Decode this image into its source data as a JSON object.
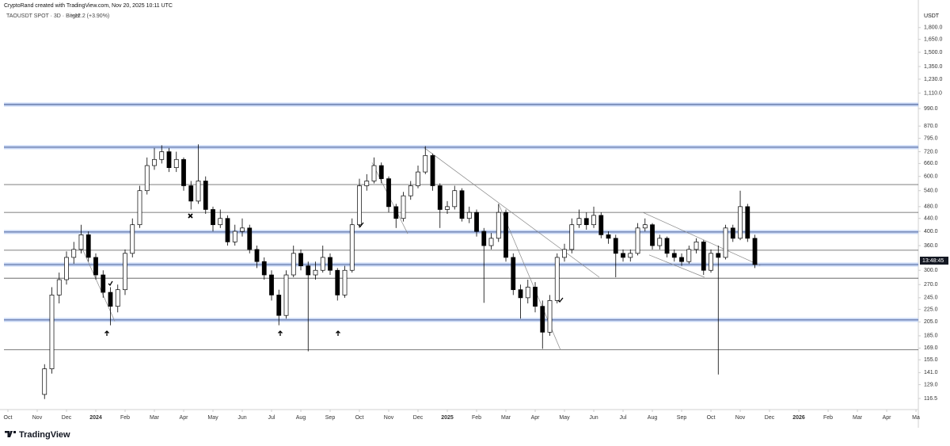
{
  "chart_data": {
    "type": "candlestick",
    "credit": "CryptoRand created with TradingView.com, Nov 20, 2025 10:11 UTC",
    "title": "TAOUSDT SPOT · 3D · Bitget",
    "change": "+12.2 (+3.90%)",
    "unit": "USDT",
    "countdown": "13:48:45",
    "brand": "TradingView",
    "log_scale": true,
    "grid": false,
    "up_color": "#ffffff",
    "down_color": "#000000",
    "border_color": "#000000",
    "xlim": [
      -0.27,
      31.08
    ],
    "ylim": [
      108.6,
      2033
    ],
    "xticks": [
      {
        "value": 0,
        "label": "Oct"
      },
      {
        "value": 1,
        "label": "Nov"
      },
      {
        "value": 2,
        "label": "Dec"
      },
      {
        "value": 3,
        "label": "2024"
      },
      {
        "value": 4,
        "label": "Feb"
      },
      {
        "value": 5,
        "label": "Mar"
      },
      {
        "value": 6,
        "label": "Apr"
      },
      {
        "value": 7,
        "label": "May"
      },
      {
        "value": 8,
        "label": "Jun"
      },
      {
        "value": 9,
        "label": "Jul"
      },
      {
        "value": 10,
        "label": "Aug"
      },
      {
        "value": 11,
        "label": "Sep"
      },
      {
        "value": 12,
        "label": "Oct"
      },
      {
        "value": 13,
        "label": "Nov"
      },
      {
        "value": 14,
        "label": "Dec"
      },
      {
        "value": 15,
        "label": "2025"
      },
      {
        "value": 16,
        "label": "Feb"
      },
      {
        "value": 17,
        "label": "Mar"
      },
      {
        "value": 18,
        "label": "Apr"
      },
      {
        "value": 19,
        "label": "May"
      },
      {
        "value": 20,
        "label": "Jun"
      },
      {
        "value": 21,
        "label": "Jul"
      },
      {
        "value": 22,
        "label": "Aug"
      },
      {
        "value": 23,
        "label": "Sep"
      },
      {
        "value": 24,
        "label": "Oct"
      },
      {
        "value": 25,
        "label": "Nov"
      },
      {
        "value": 26,
        "label": "Dec"
      },
      {
        "value": 27,
        "label": "2026"
      },
      {
        "value": 28,
        "label": "Feb"
      },
      {
        "value": 29,
        "label": "Mar"
      },
      {
        "value": 30,
        "label": "Apr"
      },
      {
        "value": 31,
        "label": "Ma"
      }
    ],
    "yticks": [
      {
        "value": 116.5,
        "label": "116.5"
      },
      {
        "value": 129,
        "label": "129.0"
      },
      {
        "value": 141,
        "label": "141.0"
      },
      {
        "value": 155,
        "label": "155.0"
      },
      {
        "value": 169,
        "label": "169.0"
      },
      {
        "value": 185,
        "label": "185.0"
      },
      {
        "value": 205,
        "label": "205.0"
      },
      {
        "value": 225,
        "label": "225.0"
      },
      {
        "value": 245,
        "label": "245.0"
      },
      {
        "value": 270,
        "label": "270.0"
      },
      {
        "value": 300,
        "label": "300.0"
      },
      {
        "value": 360,
        "label": "360.0"
      },
      {
        "value": 400,
        "label": "400.0"
      },
      {
        "value": 440,
        "label": "440.0"
      },
      {
        "value": 480,
        "label": "480.0"
      },
      {
        "value": 540,
        "label": "540.0"
      },
      {
        "value": 600,
        "label": "600.0"
      },
      {
        "value": 660,
        "label": "660.0"
      },
      {
        "value": 720,
        "label": "720.0"
      },
      {
        "value": 795,
        "label": "795.0"
      },
      {
        "value": 870,
        "label": "870.0"
      },
      {
        "value": 990,
        "label": "990.0"
      },
      {
        "value": 1110,
        "label": "1,110.0"
      },
      {
        "value": 1230,
        "label": "1,230.0"
      },
      {
        "value": 1350,
        "label": "1,350.0"
      },
      {
        "value": 1500,
        "label": "1,500.0"
      },
      {
        "value": 1650,
        "label": "1,650.0"
      },
      {
        "value": 1800,
        "label": "1,800.0"
      }
    ],
    "x": [
      1.25,
      1.5,
      1.75,
      2,
      2.25,
      2.5,
      2.75,
      3,
      3.25,
      3.5,
      3.75,
      4,
      4.25,
      4.5,
      4.75,
      5,
      5.25,
      5.5,
      5.75,
      6,
      6.25,
      6.5,
      6.75,
      7,
      7.25,
      7.5,
      7.75,
      8,
      8.25,
      8.5,
      8.75,
      9,
      9.25,
      9.5,
      9.75,
      10,
      10.25,
      10.5,
      10.75,
      11,
      11.25,
      11.5,
      11.75,
      12,
      12.25,
      12.5,
      12.75,
      13,
      13.25,
      13.5,
      13.75,
      14,
      14.25,
      14.5,
      14.75,
      15,
      15.25,
      15.5,
      15.75,
      16,
      16.25,
      16.5,
      16.75,
      17,
      17.25,
      17.5,
      17.75,
      18,
      18.25,
      18.5,
      18.75,
      19,
      19.25,
      19.5,
      19.75,
      20,
      20.25,
      20.5,
      20.75,
      21,
      21.25,
      21.5,
      21.75,
      22,
      22.25,
      22.5,
      22.75,
      23,
      23.25,
      23.5,
      23.75,
      24,
      24.25,
      24.5,
      24.75,
      25,
      25.25,
      25.5
    ],
    "open": [
      120,
      145,
      250,
      280,
      330,
      350,
      390,
      330,
      290,
      255,
      230,
      260,
      340,
      420,
      540,
      650,
      680,
      720,
      640,
      680,
      560,
      500,
      580,
      470,
      420,
      440,
      370,
      400,
      410,
      350,
      320,
      290,
      250,
      215,
      290,
      340,
      310,
      290,
      300,
      330,
      300,
      250,
      300,
      420,
      560,
      580,
      650,
      590,
      480,
      440,
      520,
      560,
      620,
      700,
      560,
      470,
      480,
      540,
      440,
      460,
      400,
      360,
      380,
      460,
      330,
      260,
      245,
      265,
      230,
      190,
      240,
      330,
      350,
      420,
      440,
      420,
      450,
      390,
      380,
      340,
      330,
      340,
      410,
      420,
      360,
      380,
      340,
      330,
      320,
      350,
      370,
      300,
      340,
      330,
      410,
      380,
      480,
      380
    ],
    "high": [
      150,
      265,
      295,
      345,
      370,
      420,
      400,
      340,
      300,
      265,
      270,
      350,
      440,
      560,
      690,
      740,
      755,
      740,
      720,
      690,
      580,
      760,
      600,
      480,
      470,
      450,
      420,
      440,
      420,
      360,
      330,
      300,
      260,
      300,
      360,
      350,
      320,
      320,
      360,
      340,
      305,
      310,
      440,
      590,
      610,
      690,
      665,
      600,
      490,
      535,
      580,
      650,
      750,
      710,
      570,
      500,
      560,
      550,
      480,
      470,
      410,
      395,
      490,
      470,
      340,
      270,
      280,
      275,
      240,
      250,
      340,
      365,
      440,
      470,
      460,
      480,
      460,
      400,
      390,
      350,
      350,
      425,
      440,
      425,
      390,
      385,
      350,
      340,
      360,
      380,
      375,
      350,
      360,
      420,
      420,
      540,
      490,
      390
    ],
    "low": [
      116,
      140,
      235,
      270,
      315,
      340,
      320,
      280,
      245,
      200,
      220,
      250,
      330,
      410,
      525,
      630,
      660,
      620,
      620,
      540,
      470,
      490,
      455,
      400,
      410,
      360,
      360,
      385,
      340,
      305,
      280,
      240,
      200,
      210,
      285,
      300,
      165,
      280,
      295,
      290,
      240,
      245,
      295,
      410,
      540,
      570,
      570,
      460,
      410,
      430,
      505,
      550,
      610,
      540,
      410,
      455,
      470,
      430,
      425,
      385,
      236,
      350,
      370,
      320,
      250,
      210,
      235,
      220,
      168,
      185,
      235,
      320,
      340,
      410,
      405,
      410,
      380,
      365,
      285,
      320,
      320,
      335,
      400,
      350,
      350,
      330,
      320,
      310,
      315,
      340,
      290,
      295,
      139,
      325,
      370,
      375,
      370,
      305
    ],
    "close": [
      145,
      250,
      280,
      330,
      350,
      390,
      330,
      290,
      255,
      230,
      260,
      340,
      420,
      540,
      650,
      680,
      720,
      640,
      680,
      560,
      500,
      580,
      470,
      420,
      440,
      370,
      400,
      410,
      350,
      320,
      290,
      250,
      215,
      290,
      340,
      310,
      290,
      300,
      330,
      300,
      250,
      300,
      420,
      560,
      580,
      650,
      590,
      480,
      440,
      520,
      560,
      620,
      700,
      560,
      470,
      480,
      540,
      440,
      460,
      400,
      360,
      380,
      460,
      330,
      260,
      245,
      265,
      230,
      190,
      240,
      330,
      350,
      420,
      440,
      420,
      450,
      390,
      380,
      340,
      330,
      340,
      410,
      420,
      360,
      380,
      340,
      330,
      320,
      350,
      370,
      300,
      340,
      330,
      410,
      380,
      480,
      380,
      313
    ],
    "levels": [
      {
        "value": 1020,
        "highlight": true
      },
      {
        "value": 744,
        "highlight": true
      },
      {
        "value": 565,
        "highlight": false
      },
      {
        "value": 460,
        "highlight": false
      },
      {
        "value": 398,
        "highlight": true
      },
      {
        "value": 348,
        "highlight": false
      },
      {
        "value": 313,
        "highlight": true
      },
      {
        "value": 283,
        "highlight": false
      },
      {
        "value": 208,
        "highlight": true
      },
      {
        "value": 167,
        "highlight": false
      }
    ],
    "trendlines": [
      {
        "x": [
          14.19,
          20.19
        ],
        "y": [
          744,
          285
        ]
      },
      {
        "x": [
          16.76,
          18.86
        ],
        "y": [
          488,
          167
        ]
      },
      {
        "x": [
          12.43,
          13.65
        ],
        "y": [
          665,
          393
        ]
      },
      {
        "x": [
          21.68,
          25.68
        ],
        "y": [
          460,
          311
        ]
      },
      {
        "x": [
          21.89,
          23.78
        ],
        "y": [
          336,
          285
        ]
      },
      {
        "x": [
          2.43,
          3.65
        ],
        "y": [
          371,
          206
        ]
      }
    ]
  }
}
